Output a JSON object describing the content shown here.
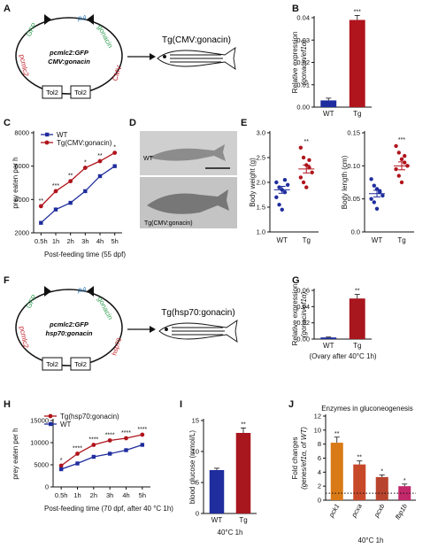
{
  "panels": {
    "A": {
      "letter": "A",
      "plasmid": {
        "line1": "pcmlc2:GFP",
        "line2": "CMV:gonacin",
        "labels": {
          "gfp": "GFP",
          "pa": "pA",
          "gonacin": "gonacin",
          "pcmlc2": "pcmlc2",
          "promoter": "CMV",
          "tol2a": "Tol2",
          "tol2b": "Tol2"
        }
      },
      "construct": "Tg(CMV:gonacin)"
    },
    "B": {
      "letter": "B"
    },
    "C": {
      "letter": "C"
    },
    "D": {
      "letter": "D",
      "fish_wt": "WT",
      "fish_tg": "Tg(CMV:gonacin)"
    },
    "E": {
      "letter": "E"
    },
    "F": {
      "letter": "F",
      "plasmid": {
        "line1": "pcmlc2:GFP",
        "line2": "hsp70:gonacin",
        "labels": {
          "gfp": "GFP",
          "pa": "pA",
          "gonacin": "gonacin",
          "pcmlc2": "pcmlc2",
          "promoter": "hsp70",
          "tol2a": "Tol2",
          "tol2b": "Tol2"
        }
      },
      "construct": "Tg(hsp70:gonacin)"
    },
    "G": {
      "letter": "G"
    },
    "H": {
      "letter": "H"
    },
    "I": {
      "letter": "I"
    },
    "J": {
      "letter": "J"
    }
  },
  "colors": {
    "blue": "#1f2d9e",
    "red": "#b0141c",
    "dark_red": "#a8161e",
    "green": "#3aa35a",
    "orange": "#d97a16",
    "rust": "#c8482a",
    "brick": "#b8442d",
    "magenta": "#c2286a",
    "gray_photo": "#c9c9c9"
  },
  "chart_data": [
    {
      "id": "B",
      "type": "bar",
      "ylabel": "Relative expression",
      "ylabel2": "(gonacin/ef1α)",
      "categories": [
        "WT",
        "Tg"
      ],
      "values": [
        0.003,
        0.039
      ],
      "errors": [
        0.001,
        0.002
      ],
      "ylim": [
        0,
        0.04
      ],
      "yticks": [
        "0.00",
        "0.01",
        "0.02",
        "0.03",
        "0.04"
      ],
      "yticks_num": [
        0,
        0.01,
        0.02,
        0.03,
        0.04
      ],
      "sig": [
        "",
        "***"
      ],
      "bar_colors": [
        "#1f2d9e",
        "#b0141c"
      ]
    },
    {
      "id": "C",
      "type": "line",
      "ylabel": "prey eaten per h",
      "xlabel": "Post-feeding time (55 dpf)",
      "categories": [
        "0.5h",
        "1h",
        "2h",
        "3h",
        "4h",
        "5h"
      ],
      "ylim": [
        2000,
        8000
      ],
      "yticks": [
        "2000",
        "4000",
        "6000",
        "8000"
      ],
      "yticks_num": [
        2000,
        4000,
        6000,
        8000
      ],
      "legend": [
        "WT",
        "Tg(CMV:gonacin)"
      ],
      "series": [
        {
          "name": "WT",
          "values": [
            2600,
            3400,
            3800,
            4500,
            5400,
            6000
          ],
          "color": "#1f2d9e",
          "marker": "square"
        },
        {
          "name": "Tg(CMV:gonacin)",
          "values": [
            3600,
            4500,
            5100,
            5900,
            6300,
            6800
          ],
          "color": "#b0141c",
          "marker": "circle"
        }
      ],
      "sig": [
        "**",
        "***",
        "**",
        "*",
        "**",
        "*"
      ]
    },
    {
      "id": "E1",
      "type": "scatter",
      "ylabel": "Body weight (g)",
      "categories": [
        "WT",
        "Tg"
      ],
      "ylim": [
        1.0,
        3.0
      ],
      "yticks": [
        "1.0",
        "1.5",
        "2.0",
        "2.5",
        "3.0"
      ],
      "yticks_num": [
        1.0,
        1.5,
        2.0,
        2.5,
        3.0
      ],
      "series": [
        {
          "name": "WT",
          "values": [
            2.0,
            1.9,
            1.85,
            1.8,
            1.95,
            1.7,
            1.55,
            1.45,
            2.05
          ],
          "mean": 1.85,
          "sem": 0.07,
          "color": "#1f2d9e"
        },
        {
          "name": "Tg",
          "values": [
            2.7,
            2.5,
            2.35,
            2.3,
            2.2,
            2.1,
            2.0,
            1.9,
            2.45
          ],
          "mean": 2.27,
          "sem": 0.08,
          "color": "#b0141c"
        }
      ],
      "sig": [
        "",
        "**"
      ]
    },
    {
      "id": "E2",
      "type": "scatter",
      "ylabel": "Body length (cm)",
      "categories": [
        "WT",
        "Tg"
      ],
      "ylim": [
        0.0,
        0.15
      ],
      "yticks": [
        "0.0",
        "0.05",
        "0.10",
        "0.15"
      ],
      "yticks_num": [
        0.0,
        0.05,
        0.1,
        0.15
      ],
      "series": [
        {
          "name": "WT",
          "values": [
            0.08,
            0.07,
            0.065,
            0.06,
            0.055,
            0.05,
            0.045,
            0.035,
            0.062
          ],
          "mean": 0.058,
          "sem": 0.005,
          "color": "#1f2d9e"
        },
        {
          "name": "Tg",
          "values": [
            0.13,
            0.12,
            0.11,
            0.105,
            0.1,
            0.095,
            0.085,
            0.075,
            0.115
          ],
          "mean": 0.1,
          "sem": 0.006,
          "color": "#b0141c"
        }
      ],
      "sig": [
        "",
        "***"
      ]
    },
    {
      "id": "G",
      "type": "bar",
      "ylabel": "Relative expression",
      "ylabel2": "(gonacin/ef1α)",
      "xlabel": "(Ovary after 40°C 1h)",
      "categories": [
        "WT",
        "Tg"
      ],
      "values": [
        0.002,
        0.05
      ],
      "errors": [
        0.0005,
        0.005
      ],
      "ylim": [
        0,
        0.06
      ],
      "yticks": [
        "0.00",
        "0.02",
        "0.04",
        "0.06"
      ],
      "yticks_num": [
        0,
        0.02,
        0.04,
        0.06
      ],
      "sig": [
        "",
        "**"
      ],
      "bar_colors": [
        "#1f2d9e",
        "#a8161e"
      ]
    },
    {
      "id": "H",
      "type": "line",
      "ylabel": "prey eaten per h",
      "xlabel": "Post-feeding time (70 dpf, after 40 °C 1h)",
      "categories": [
        "0.5h",
        "1h",
        "2h",
        "3h",
        "4h",
        "5h"
      ],
      "ylim": [
        0,
        15000
      ],
      "yticks": [
        "0",
        "5000",
        "10000",
        "15000"
      ],
      "yticks_num": [
        0,
        5000,
        10000,
        15000
      ],
      "legend": [
        "Tg(hsp70:gonacin)",
        "WT"
      ],
      "series": [
        {
          "name": "Tg(hsp70:gonacin)",
          "values": [
            4800,
            7500,
            9500,
            10500,
            11000,
            11800
          ],
          "color": "#b0141c",
          "marker": "circle"
        },
        {
          "name": "WT",
          "values": [
            4000,
            5300,
            6800,
            7500,
            8300,
            9500
          ],
          "color": "#1f2d9e",
          "marker": "square"
        }
      ],
      "sig": [
        "*",
        "****",
        "****",
        "****",
        "****",
        "****"
      ]
    },
    {
      "id": "I",
      "type": "bar",
      "ylabel": "blood glucose (mmol/L)",
      "xlabel": "40°C 1h",
      "categories": [
        "WT",
        "Tg"
      ],
      "values": [
        7,
        13
      ],
      "errors": [
        0.3,
        0.8
      ],
      "ylim": [
        0,
        15
      ],
      "yticks": [
        "0",
        "5",
        "10",
        "15"
      ],
      "yticks_num": [
        0,
        5,
        10,
        15
      ],
      "sig": [
        "",
        "**"
      ],
      "bar_colors": [
        "#1f2d9e",
        "#a8161e"
      ]
    },
    {
      "id": "J",
      "type": "bar",
      "title": "Enzymes in gluconeogenesis",
      "ylabel": "Fold changes",
      "ylabel2": "(genes/ef1α, of WT)",
      "xlabel": "40°C 1h",
      "categories": [
        "pck1",
        "pcxa",
        "pcxb",
        "fbp1b"
      ],
      "values": [
        8.2,
        5.1,
        3.3,
        2.0
      ],
      "errors": [
        0.8,
        0.5,
        0.3,
        0.3
      ],
      "ylim": [
        0,
        12
      ],
      "yticks": [
        "0",
        "2",
        "4",
        "6",
        "8",
        "10",
        "12"
      ],
      "yticks_num": [
        0,
        2,
        4,
        6,
        8,
        10,
        12
      ],
      "sig": [
        "**",
        "**",
        "*",
        "*"
      ],
      "bar_colors": [
        "#d97a16",
        "#c8482a",
        "#b8442d",
        "#c2286a"
      ],
      "baseline": 1
    }
  ]
}
